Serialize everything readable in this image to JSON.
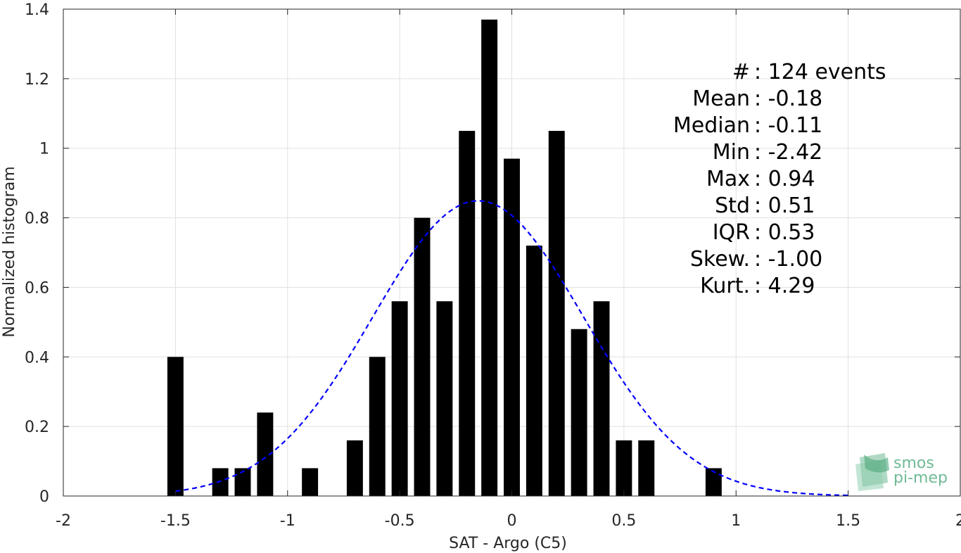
{
  "chart_data": {
    "type": "bar",
    "xlabel": "SAT - Argo (C5)",
    "ylabel": "Normalized histogram",
    "xlim": [
      -2,
      2
    ],
    "ylim": [
      0,
      1.4
    ],
    "xticks": [
      -2,
      -1.5,
      -1,
      -0.5,
      0,
      0.5,
      1,
      1.5,
      2
    ],
    "xtick_labels": [
      "-2",
      "-1.5",
      "-1",
      "-0.5",
      "0",
      "0.5",
      "1",
      "1.5",
      "2"
    ],
    "yticks": [
      0,
      0.2,
      0.4,
      0.6,
      0.8,
      1,
      1.2,
      1.4
    ],
    "ytick_labels": [
      "0",
      "0.2",
      "0.4",
      "0.6",
      "0.8",
      "1",
      "1.2",
      "1.4"
    ],
    "grid": true,
    "bar_color": "#000000",
    "bin_width": 0.1,
    "bins": [
      {
        "x": -1.5,
        "y": 0.4
      },
      {
        "x": -1.3,
        "y": 0.08
      },
      {
        "x": -1.2,
        "y": 0.08
      },
      {
        "x": -1.1,
        "y": 0.24
      },
      {
        "x": -0.9,
        "y": 0.08
      },
      {
        "x": -0.7,
        "y": 0.16
      },
      {
        "x": -0.6,
        "y": 0.4
      },
      {
        "x": -0.5,
        "y": 0.56
      },
      {
        "x": -0.4,
        "y": 0.8
      },
      {
        "x": -0.3,
        "y": 0.56
      },
      {
        "x": -0.2,
        "y": 1.05
      },
      {
        "x": -0.1,
        "y": 1.37
      },
      {
        "x": 0.0,
        "y": 0.97
      },
      {
        "x": 0.1,
        "y": 0.72
      },
      {
        "x": 0.2,
        "y": 1.05
      },
      {
        "x": 0.3,
        "y": 0.48
      },
      {
        "x": 0.4,
        "y": 0.56
      },
      {
        "x": 0.5,
        "y": 0.16
      },
      {
        "x": 0.6,
        "y": 0.16
      },
      {
        "x": 0.9,
        "y": 0.08
      }
    ],
    "fit_curve": {
      "type": "normal",
      "mean": -0.15,
      "std": 0.47,
      "x_range": [
        -1.5,
        1.5
      ],
      "color": "#0000ff",
      "style": "dashed"
    },
    "annotations": [
      "#  : 124 events",
      "Mean : -0.18",
      "Median : -0.11",
      "Min : -2.42",
      "Max : 0.94",
      "Std : 0.51",
      "IQR : 0.53",
      "Skew. : -1.00",
      "Kurt. : 4.29"
    ]
  },
  "logo": {
    "line1": "smos",
    "line2": "pi-mep",
    "color": "#6fba94"
  }
}
